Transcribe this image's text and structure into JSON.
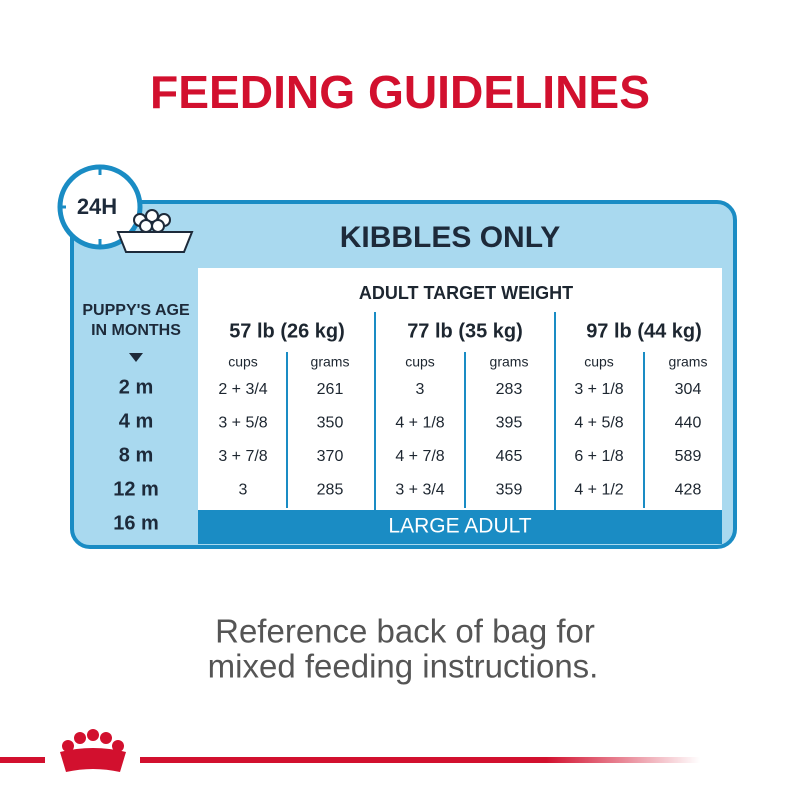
{
  "title": "FEEDING GUIDELINES",
  "panel": {
    "badge": "24H",
    "heading": "KIBBLES ONLY",
    "age_header": [
      "PUPPY'S AGE",
      "IN MONTHS"
    ],
    "ages": [
      "2 m",
      "4 m",
      "8 m",
      "12 m",
      "16 m"
    ],
    "table": {
      "title": "ADULT TARGET WEIGHT",
      "weights": [
        "57 lb (26 kg)",
        "77 lb (35 kg)",
        "97 lb (44 kg)"
      ],
      "columns": [
        "cups",
        "grams",
        "cups",
        "grams",
        "cups",
        "grams"
      ],
      "rows": [
        [
          "2 + 3/4",
          "261",
          "3",
          "283",
          "3 + 1/8",
          "304"
        ],
        [
          "3 + 5/8",
          "350",
          "4 + 1/8",
          "395",
          "4 + 5/8",
          "440"
        ],
        [
          "3 + 7/8",
          "370",
          "4 + 7/8",
          "465",
          "6 + 1/8",
          "589"
        ],
        [
          "3",
          "285",
          "3 + 3/4",
          "359",
          "4 + 1/2",
          "428"
        ]
      ],
      "adult_stage": "LARGE ADULT"
    }
  },
  "footer_note": [
    "Reference back of bag for",
    "mixed feeding instructions."
  ]
}
